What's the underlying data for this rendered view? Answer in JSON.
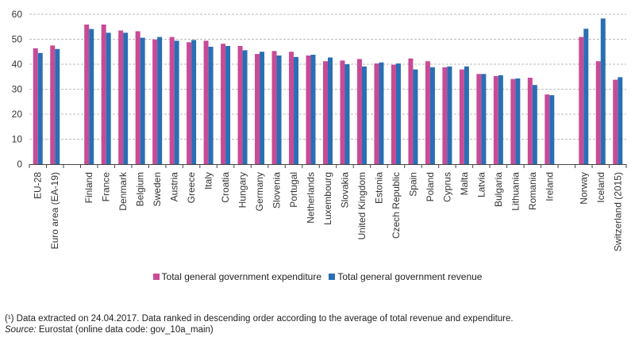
{
  "chart_data": {
    "type": "bar",
    "title": "",
    "xlabel": "",
    "ylabel": "",
    "ylim": [
      0,
      60
    ],
    "yticks": [
      0,
      10,
      20,
      30,
      40,
      50,
      60
    ],
    "grid": true,
    "legend_position": "bottom",
    "categories": [
      "EU-28",
      "Euro area (EA-19)",
      "",
      "Finland",
      "France",
      "Denmark",
      "Belgium",
      "Sweden",
      "Austria",
      "Greece",
      "Italy",
      "Croatia",
      "Hungary",
      "Germany",
      "Slovenia",
      "Portugal",
      "Netherlands",
      "Luxembourg",
      "Slovakia",
      "United Kingdom",
      "Estonia",
      "Czech Republic",
      "Spain",
      "Poland",
      "Cyprus",
      "Malta",
      "Latvia",
      "Bulgaria",
      "Lithuania",
      "Romania",
      "Ireland",
      "",
      "Norway",
      "Iceland",
      "Switzerland (2015)"
    ],
    "series": [
      {
        "name": "Total general government expenditure",
        "color": "#c84b96",
        "values": [
          46.4,
          47.5,
          null,
          55.9,
          55.9,
          53.5,
          53.2,
          49.9,
          50.9,
          48.8,
          49.4,
          48.2,
          47.3,
          44.1,
          45.3,
          45.0,
          43.5,
          41.2,
          41.5,
          42.1,
          40.3,
          39.8,
          42.3,
          41.2,
          38.8,
          37.9,
          36.1,
          35.3,
          34.1,
          34.6,
          27.9,
          null,
          50.9,
          41.2,
          33.8
        ]
      },
      {
        "name": "Total general government revenue",
        "color": "#2a6eb5",
        "values": [
          44.5,
          46.1,
          null,
          54.1,
          52.6,
          52.6,
          50.6,
          50.9,
          49.4,
          49.7,
          47.0,
          47.3,
          45.6,
          45.0,
          43.5,
          42.9,
          43.8,
          42.7,
          40.0,
          39.1,
          40.7,
          40.3,
          37.9,
          38.8,
          39.1,
          39.1,
          36.1,
          35.6,
          34.3,
          31.7,
          27.6,
          null,
          54.2,
          58.3,
          34.8
        ]
      }
    ]
  },
  "legend": {
    "items": [
      {
        "label": "Total general government expenditure",
        "color": "#c84b96"
      },
      {
        "label": "Total general government revenue",
        "color": "#2a6eb5"
      }
    ]
  },
  "footnote": {
    "note": "(¹) Data extracted on 24.04.2017. Data ranked in descending order according to the average of total revenue and expenditure.",
    "source_label": "Source:",
    "source_text": " Eurostat (online data code: gov_10a_main)"
  }
}
